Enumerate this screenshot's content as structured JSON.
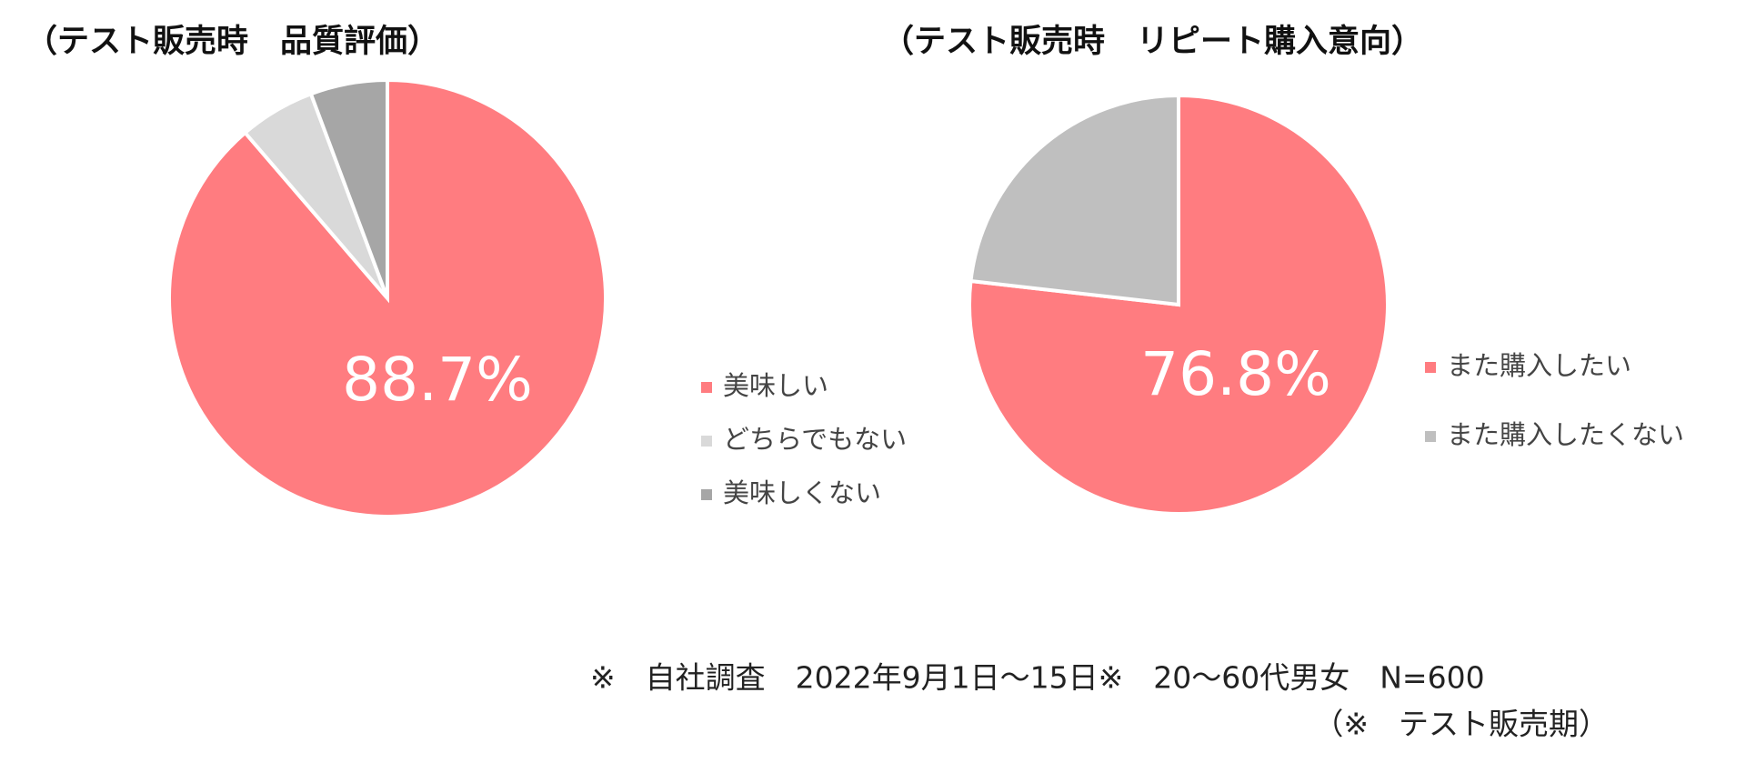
{
  "chart_data": [
    {
      "type": "pie",
      "title": "（テスト販売時　品質評価）",
      "categories": [
        "美味しい",
        "どちらでもない",
        "美味しくない"
      ],
      "values": [
        88.7,
        5.6,
        5.7
      ],
      "value_labels": [
        "88.7%",
        null,
        null
      ],
      "colors": [
        "#ff7c80",
        "#d9d9d9",
        "#a6a6a6"
      ]
    },
    {
      "type": "pie",
      "title": "（テスト販売時　リピート購入意向）",
      "categories": [
        "また購入したい",
        "また購入したくない"
      ],
      "values": [
        76.8,
        23.2
      ],
      "value_labels": [
        "76.8%",
        null
      ],
      "colors": [
        "#ff7c80",
        "#bfbfbf"
      ]
    }
  ],
  "footnotes": [
    "※　自社調査　2022年9月1日～15日※　20～60代男女　N=600",
    "（※　テスト販売期）"
  ]
}
